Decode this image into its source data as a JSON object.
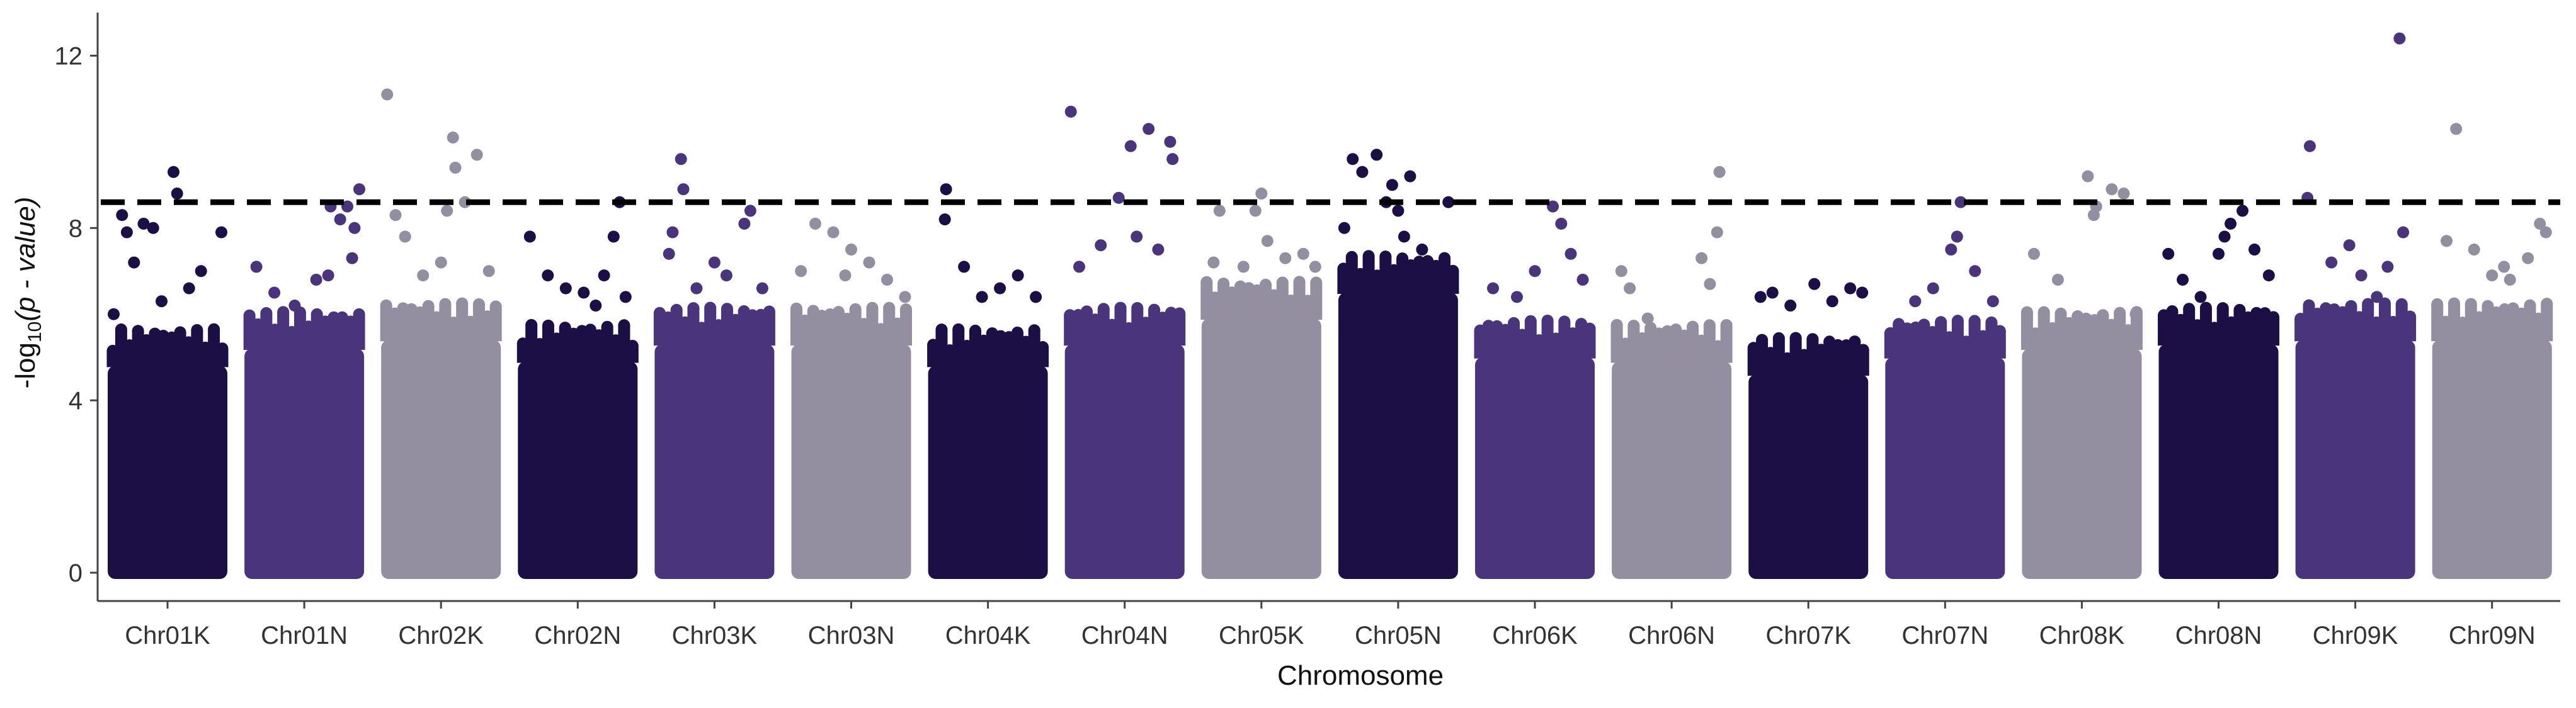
{
  "chart_data": {
    "type": "scatter",
    "subtype": "manhattan",
    "title": "",
    "xlabel": "Chromosome",
    "ylabel_prefix": "-log",
    "ylabel_sub": "10",
    "ylabel_suffix": "(p - value)",
    "ylim": [
      0,
      13
    ],
    "yticks": [
      0,
      4,
      8,
      12
    ],
    "threshold": 8.6,
    "grid": false,
    "legend": "none",
    "colors": [
      "#1c0f45",
      "#4a357c",
      "#948fa0"
    ],
    "categories": [
      "Chr01K",
      "Chr01N",
      "Chr02K",
      "Chr02N",
      "Chr03K",
      "Chr03N",
      "Chr04K",
      "Chr04N",
      "Chr05K",
      "Chr05N",
      "Chr06K",
      "Chr06N",
      "Chr07K",
      "Chr07N",
      "Chr08K",
      "Chr08N",
      "Chr09K",
      "Chr09N"
    ],
    "series": [
      {
        "chromosome": "Chr01K",
        "color_index": 0,
        "bulk_top": 4.8,
        "points": [
          [
            0.05,
            6.0
          ],
          [
            0.12,
            8.3
          ],
          [
            0.16,
            7.9
          ],
          [
            0.3,
            8.1
          ],
          [
            0.38,
            8.0
          ],
          [
            0.55,
            9.3
          ],
          [
            0.58,
            8.8
          ],
          [
            0.68,
            6.6
          ],
          [
            0.78,
            7.0
          ],
          [
            0.95,
            7.9
          ],
          [
            0.45,
            6.3
          ],
          [
            0.22,
            7.2
          ]
        ]
      },
      {
        "chromosome": "Chr01N",
        "color_index": 1,
        "bulk_top": 5.2,
        "points": [
          [
            0.1,
            7.1
          ],
          [
            0.25,
            6.5
          ],
          [
            0.42,
            6.2
          ],
          [
            0.6,
            6.8
          ],
          [
            0.72,
            8.5
          ],
          [
            0.8,
            8.2
          ],
          [
            0.86,
            8.5
          ],
          [
            0.92,
            8.0
          ],
          [
            0.96,
            8.9
          ],
          [
            0.9,
            7.3
          ],
          [
            0.7,
            6.9
          ]
        ]
      },
      {
        "chromosome": "Chr02K",
        "color_index": 2,
        "bulk_top": 5.4,
        "points": [
          [
            0.05,
            11.1
          ],
          [
            0.12,
            8.3
          ],
          [
            0.2,
            7.8
          ],
          [
            0.35,
            6.9
          ],
          [
            0.55,
            8.4
          ],
          [
            0.6,
            10.1
          ],
          [
            0.62,
            9.4
          ],
          [
            0.8,
            9.7
          ],
          [
            0.7,
            8.6
          ],
          [
            0.5,
            7.2
          ],
          [
            0.9,
            7.0
          ]
        ]
      },
      {
        "chromosome": "Chr02N",
        "color_index": 0,
        "bulk_top": 4.9,
        "points": [
          [
            0.1,
            7.8
          ],
          [
            0.25,
            6.9
          ],
          [
            0.4,
            6.6
          ],
          [
            0.55,
            6.5
          ],
          [
            0.72,
            6.9
          ],
          [
            0.8,
            7.8
          ],
          [
            0.85,
            8.6
          ],
          [
            0.9,
            6.4
          ],
          [
            0.65,
            6.2
          ]
        ]
      },
      {
        "chromosome": "Chr03K",
        "color_index": 1,
        "bulk_top": 5.3,
        "points": [
          [
            0.15,
            7.9
          ],
          [
            0.22,
            9.6
          ],
          [
            0.24,
            8.9
          ],
          [
            0.35,
            6.6
          ],
          [
            0.5,
            7.2
          ],
          [
            0.6,
            6.9
          ],
          [
            0.75,
            8.1
          ],
          [
            0.8,
            8.4
          ],
          [
            0.9,
            6.6
          ],
          [
            0.12,
            7.4
          ]
        ]
      },
      {
        "chromosome": "Chr03N",
        "color_index": 2,
        "bulk_top": 5.3,
        "points": [
          [
            0.08,
            7.0
          ],
          [
            0.2,
            8.1
          ],
          [
            0.35,
            7.9
          ],
          [
            0.5,
            7.5
          ],
          [
            0.65,
            7.2
          ],
          [
            0.8,
            6.8
          ],
          [
            0.95,
            6.4
          ],
          [
            0.45,
            6.9
          ]
        ]
      },
      {
        "chromosome": "Chr04K",
        "color_index": 0,
        "bulk_top": 4.8,
        "points": [
          [
            0.15,
            8.9
          ],
          [
            0.14,
            8.2
          ],
          [
            0.3,
            7.1
          ],
          [
            0.45,
            6.4
          ],
          [
            0.6,
            6.6
          ],
          [
            0.75,
            6.9
          ],
          [
            0.9,
            6.4
          ]
        ]
      },
      {
        "chromosome": "Chr04N",
        "color_index": 1,
        "bulk_top": 5.3,
        "points": [
          [
            0.05,
            10.7
          ],
          [
            0.12,
            7.1
          ],
          [
            0.3,
            7.6
          ],
          [
            0.45,
            8.7
          ],
          [
            0.55,
            9.9
          ],
          [
            0.7,
            10.3
          ],
          [
            0.88,
            10.0
          ],
          [
            0.9,
            9.6
          ],
          [
            0.6,
            7.8
          ],
          [
            0.78,
            7.5
          ]
        ]
      },
      {
        "chromosome": "Chr05K",
        "color_index": 2,
        "bulk_top": 5.9,
        "points": [
          [
            0.1,
            7.2
          ],
          [
            0.15,
            8.4
          ],
          [
            0.35,
            7.1
          ],
          [
            0.45,
            8.4
          ],
          [
            0.5,
            8.8
          ],
          [
            0.55,
            7.7
          ],
          [
            0.7,
            7.3
          ],
          [
            0.85,
            7.4
          ],
          [
            0.95,
            7.1
          ]
        ]
      },
      {
        "chromosome": "Chr05N",
        "color_index": 0,
        "bulk_top": 6.5,
        "points": [
          [
            0.05,
            8.0
          ],
          [
            0.12,
            9.6
          ],
          [
            0.2,
            9.3
          ],
          [
            0.32,
            9.7
          ],
          [
            0.4,
            8.6
          ],
          [
            0.45,
            9.0
          ],
          [
            0.5,
            8.4
          ],
          [
            0.6,
            9.2
          ],
          [
            0.7,
            7.5
          ],
          [
            0.8,
            7.1
          ],
          [
            0.92,
            8.6
          ],
          [
            0.55,
            7.8
          ]
        ]
      },
      {
        "chromosome": "Chr06K",
        "color_index": 1,
        "bulk_top": 5.0,
        "points": [
          [
            0.15,
            6.6
          ],
          [
            0.35,
            6.4
          ],
          [
            0.5,
            7.0
          ],
          [
            0.65,
            8.5
          ],
          [
            0.72,
            8.1
          ],
          [
            0.8,
            7.4
          ],
          [
            0.9,
            6.8
          ]
        ]
      },
      {
        "chromosome": "Chr06N",
        "color_index": 2,
        "bulk_top": 4.9,
        "points": [
          [
            0.08,
            7.0
          ],
          [
            0.15,
            6.6
          ],
          [
            0.3,
            5.9
          ],
          [
            0.5,
            5.4
          ],
          [
            0.75,
            7.3
          ],
          [
            0.88,
            7.9
          ],
          [
            0.9,
            9.3
          ],
          [
            0.82,
            6.7
          ]
        ]
      },
      {
        "chromosome": "Chr07K",
        "color_index": 0,
        "bulk_top": 4.6,
        "points": [
          [
            0.1,
            6.4
          ],
          [
            0.2,
            6.5
          ],
          [
            0.35,
            6.2
          ],
          [
            0.55,
            6.7
          ],
          [
            0.7,
            6.3
          ],
          [
            0.85,
            6.6
          ],
          [
            0.95,
            6.5
          ]
        ]
      },
      {
        "chromosome": "Chr07N",
        "color_index": 1,
        "bulk_top": 5.0,
        "points": [
          [
            0.1,
            5.4
          ],
          [
            0.25,
            6.3
          ],
          [
            0.4,
            6.6
          ],
          [
            0.55,
            7.5
          ],
          [
            0.63,
            8.6
          ],
          [
            0.6,
            7.8
          ],
          [
            0.75,
            7.0
          ],
          [
            0.9,
            6.3
          ]
        ]
      },
      {
        "chromosome": "Chr08K",
        "color_index": 2,
        "bulk_top": 5.2,
        "points": [
          [
            0.1,
            7.4
          ],
          [
            0.3,
            6.8
          ],
          [
            0.55,
            9.2
          ],
          [
            0.6,
            8.3
          ],
          [
            0.62,
            8.5
          ],
          [
            0.75,
            8.9
          ],
          [
            0.85,
            8.8
          ],
          [
            0.95,
            6.0
          ]
        ]
      },
      {
        "chromosome": "Chr08N",
        "color_index": 0,
        "bulk_top": 5.3,
        "points": [
          [
            0.08,
            7.4
          ],
          [
            0.2,
            6.8
          ],
          [
            0.35,
            6.4
          ],
          [
            0.5,
            7.4
          ],
          [
            0.55,
            7.8
          ],
          [
            0.6,
            8.1
          ],
          [
            0.7,
            8.4
          ],
          [
            0.8,
            7.5
          ],
          [
            0.92,
            6.9
          ]
        ]
      },
      {
        "chromosome": "Chr09K",
        "color_index": 1,
        "bulk_top": 5.4,
        "points": [
          [
            0.12,
            9.9
          ],
          [
            0.1,
            8.7
          ],
          [
            0.3,
            7.2
          ],
          [
            0.45,
            7.6
          ],
          [
            0.55,
            6.9
          ],
          [
            0.68,
            6.4
          ],
          [
            0.9,
            7.9
          ],
          [
            0.87,
            12.4
          ],
          [
            0.77,
            7.1
          ]
        ]
      },
      {
        "chromosome": "Chr09N",
        "color_index": 2,
        "bulk_top": 5.4,
        "points": [
          [
            0.12,
            7.7
          ],
          [
            0.2,
            10.3
          ],
          [
            0.35,
            7.5
          ],
          [
            0.5,
            6.9
          ],
          [
            0.65,
            6.8
          ],
          [
            0.8,
            7.3
          ],
          [
            0.9,
            8.1
          ],
          [
            0.95,
            7.9
          ],
          [
            0.6,
            7.1
          ]
        ]
      }
    ]
  }
}
